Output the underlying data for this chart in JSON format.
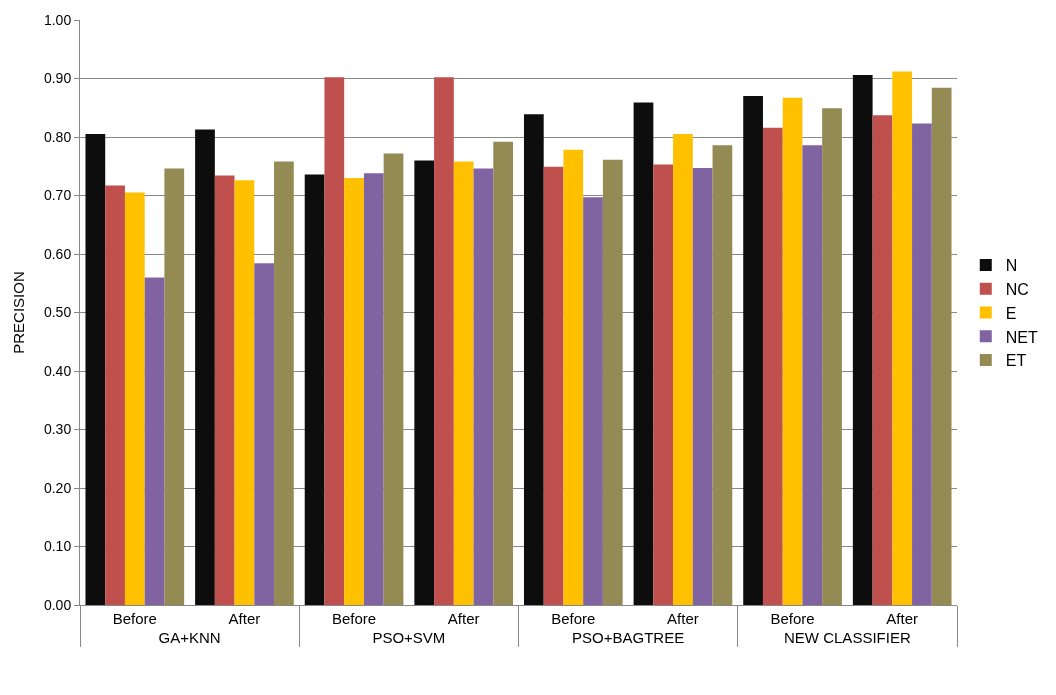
{
  "chart_data": {
    "type": "bar",
    "ylabel": "PRECISION",
    "categories": [
      "Before",
      "After",
      "Before",
      "After",
      "Before",
      "After",
      "Before",
      "After"
    ],
    "annotations": [
      "GA+KNN",
      "PSO+SVM",
      "PSO+BAGTREE",
      "NEW CLASSIFIER"
    ],
    "series": [
      {
        "name": "N",
        "color": "#0d0d0d",
        "values": [
          0.805,
          0.813,
          0.736,
          0.76,
          0.839,
          0.859,
          0.87,
          0.906
        ]
      },
      {
        "name": "NC",
        "color": "#c0504d",
        "values": [
          0.717,
          0.734,
          0.902,
          0.902,
          0.749,
          0.753,
          0.816,
          0.837
        ]
      },
      {
        "name": "E",
        "color": "#ffc000",
        "values": [
          0.705,
          0.726,
          0.73,
          0.758,
          0.778,
          0.805,
          0.867,
          0.912
        ]
      },
      {
        "name": "NET",
        "color": "#8064a2",
        "values": [
          0.56,
          0.584,
          0.738,
          0.746,
          0.697,
          0.747,
          0.786,
          0.823
        ]
      },
      {
        "name": "ET",
        "color": "#948a54",
        "values": [
          0.746,
          0.758,
          0.772,
          0.792,
          0.761,
          0.786,
          0.849,
          0.884
        ]
      }
    ],
    "ylim": [
      0,
      1
    ],
    "yticks": [
      {
        "value": 0,
        "label": "0.00"
      },
      {
        "value": 0.1,
        "label": "0.10"
      },
      {
        "value": 0.2,
        "label": "0.20"
      },
      {
        "value": 0.3,
        "label": "0.30"
      },
      {
        "value": 0.4,
        "label": "0.40"
      },
      {
        "value": 0.5,
        "label": "0.50"
      },
      {
        "value": 0.6,
        "label": "0.60"
      },
      {
        "value": 0.7,
        "label": "0.70"
      },
      {
        "value": 0.8,
        "label": "0.80"
      },
      {
        "value": 0.9,
        "label": "0.90"
      },
      {
        "value": 1,
        "label": "1.00"
      }
    ],
    "grid": "y",
    "legend": "right"
  }
}
